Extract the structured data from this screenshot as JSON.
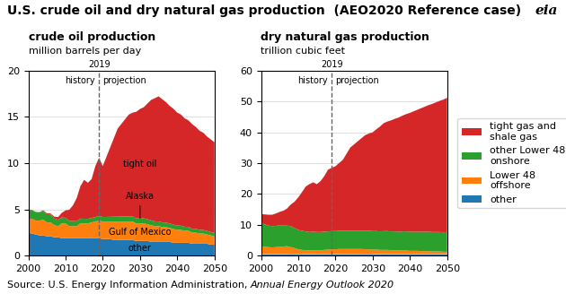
{
  "title": "U.S. crude oil and dry natural gas production  (AEO2020 Reference case)",
  "source": "Source: U.S. Energy Information Administration, ",
  "source_italic": "Annual Energy Outlook 2020",
  "logo": "eia",
  "chart_data": [
    {
      "type": "area",
      "stacked": true,
      "title": "crude oil production",
      "subtitle": "million barrels per day",
      "x": [
        2000,
        2001,
        2002,
        2003,
        2004,
        2005,
        2006,
        2007,
        2008,
        2009,
        2010,
        2011,
        2012,
        2013,
        2014,
        2015,
        2016,
        2017,
        2018,
        2019,
        2020,
        2021,
        2022,
        2023,
        2024,
        2025,
        2026,
        2027,
        2028,
        2029,
        2030,
        2031,
        2032,
        2033,
        2034,
        2035,
        2036,
        2037,
        2038,
        2039,
        2040,
        2041,
        2042,
        2043,
        2044,
        2045,
        2046,
        2047,
        2048,
        2049,
        2050
      ],
      "xlim": [
        2000,
        2050
      ],
      "xticks": [
        2000,
        2010,
        2020,
        2030,
        2040,
        2050
      ],
      "ylim": [
        0,
        20
      ],
      "yticks": [
        0,
        5,
        10,
        15,
        20
      ],
      "grid": "y",
      "vlines": [
        {
          "x": 2019,
          "label": "2019",
          "left_text": "history",
          "right_text": "projection"
        }
      ],
      "series": [
        {
          "name": "other",
          "values": [
            2.5,
            2.4,
            2.3,
            2.2,
            2.2,
            2.1,
            2.1,
            2.0,
            2.0,
            1.9,
            1.9,
            1.9,
            1.9,
            1.9,
            1.9,
            1.9,
            1.9,
            1.9,
            1.9,
            1.9,
            1.8,
            1.8,
            1.8,
            1.7,
            1.7,
            1.7,
            1.7,
            1.7,
            1.7,
            1.6,
            1.6,
            1.6,
            1.6,
            1.5,
            1.5,
            1.5,
            1.5,
            1.5,
            1.5,
            1.4,
            1.4,
            1.4,
            1.4,
            1.4,
            1.3,
            1.3,
            1.3,
            1.3,
            1.3,
            1.2,
            1.2
          ]
        },
        {
          "name": "Gulf of Mexico",
          "values": [
            1.5,
            1.6,
            1.5,
            1.6,
            1.7,
            1.5,
            1.5,
            1.3,
            1.2,
            1.6,
            1.6,
            1.3,
            1.3,
            1.3,
            1.6,
            1.6,
            1.6,
            1.7,
            1.8,
            1.9,
            1.9,
            1.9,
            1.9,
            2.0,
            2.0,
            2.0,
            2.0,
            2.0,
            2.0,
            1.9,
            1.9,
            1.9,
            1.8,
            1.8,
            1.7,
            1.7,
            1.6,
            1.6,
            1.5,
            1.5,
            1.4,
            1.4,
            1.3,
            1.3,
            1.2,
            1.2,
            1.1,
            1.1,
            1.0,
            1.0,
            0.9
          ]
        },
        {
          "name": "Alaska",
          "values": [
            0.97,
            0.95,
            0.93,
            0.92,
            0.9,
            0.89,
            0.87,
            0.72,
            0.68,
            0.64,
            0.6,
            0.57,
            0.55,
            0.53,
            0.52,
            0.5,
            0.49,
            0.48,
            0.48,
            0.49,
            0.49,
            0.5,
            0.51,
            0.52,
            0.53,
            0.54,
            0.55,
            0.55,
            0.55,
            0.55,
            0.55,
            0.54,
            0.54,
            0.53,
            0.52,
            0.51,
            0.5,
            0.49,
            0.48,
            0.47,
            0.46,
            0.45,
            0.44,
            0.43,
            0.42,
            0.41,
            0.4,
            0.39,
            0.38,
            0.37,
            0.36
          ]
        },
        {
          "name": "tight oil",
          "values": [
            0.0,
            0.0,
            0.0,
            0.0,
            0.1,
            0.1,
            0.1,
            0.2,
            0.3,
            0.5,
            0.8,
            1.2,
            1.7,
            2.5,
            3.5,
            4.2,
            3.9,
            4.2,
            5.5,
            6.3,
            5.5,
            6.5,
            7.5,
            8.5,
            9.5,
            10.0,
            10.5,
            11.0,
            11.2,
            11.5,
            11.8,
            12.0,
            12.5,
            13.0,
            13.3,
            13.5,
            13.3,
            13.0,
            12.7,
            12.5,
            12.2,
            12.0,
            11.7,
            11.5,
            11.3,
            11.0,
            10.7,
            10.5,
            10.2,
            10.0,
            9.8
          ]
        }
      ]
    },
    {
      "type": "area",
      "stacked": true,
      "title": "dry natural gas production",
      "subtitle": "trillion cubic feet",
      "x": [
        2000,
        2001,
        2002,
        2003,
        2004,
        2005,
        2006,
        2007,
        2008,
        2009,
        2010,
        2011,
        2012,
        2013,
        2014,
        2015,
        2016,
        2017,
        2018,
        2019,
        2020,
        2021,
        2022,
        2023,
        2024,
        2025,
        2026,
        2027,
        2028,
        2029,
        2030,
        2031,
        2032,
        2033,
        2034,
        2035,
        2036,
        2037,
        2038,
        2039,
        2040,
        2041,
        2042,
        2043,
        2044,
        2045,
        2046,
        2047,
        2048,
        2049,
        2050
      ],
      "xlim": [
        2000,
        2050
      ],
      "xticks": [
        2000,
        2010,
        2020,
        2030,
        2040,
        2050
      ],
      "ylim": [
        0,
        60
      ],
      "yticks": [
        0,
        10,
        20,
        30,
        40,
        50,
        60
      ],
      "grid": "y",
      "legend": "center left",
      "vlines": [
        {
          "x": 2019,
          "label": "2019",
          "left_text": "history",
          "right_text": "projection"
        }
      ],
      "series": [
        {
          "name": "other",
          "values": [
            0.5,
            0.5,
            0.5,
            0.5,
            0.5,
            0.5,
            0.5,
            0.5,
            0.5,
            0.5,
            0.5,
            0.5,
            0.5,
            0.5,
            0.5,
            0.5,
            0.5,
            0.5,
            0.5,
            0.5,
            0.5,
            0.5,
            0.5,
            0.5,
            0.5,
            0.5,
            0.5,
            0.5,
            0.5,
            0.5,
            0.5,
            0.5,
            0.5,
            0.5,
            0.5,
            0.5,
            0.5,
            0.5,
            0.5,
            0.5,
            0.5,
            0.5,
            0.5,
            0.5,
            0.5,
            0.5,
            0.5,
            0.5,
            0.5,
            0.5,
            0.5
          ]
        },
        {
          "name": "Lower 48\noffshore",
          "values": [
            2.5,
            2.4,
            2.3,
            2.2,
            2.3,
            2.4,
            2.5,
            2.6,
            2.3,
            2.0,
            1.6,
            1.4,
            1.3,
            1.2,
            1.3,
            1.3,
            1.3,
            1.4,
            1.5,
            1.6,
            1.6,
            1.7,
            1.7,
            1.7,
            1.7,
            1.7,
            1.7,
            1.7,
            1.6,
            1.6,
            1.5,
            1.5,
            1.4,
            1.4,
            1.4,
            1.3,
            1.3,
            1.2,
            1.2,
            1.2,
            1.1,
            1.1,
            1.1,
            1.0,
            1.0,
            1.0,
            0.9,
            0.9,
            0.9,
            0.8,
            0.8
          ]
        },
        {
          "name": "other Lower 48\nonshore",
          "values": [
            7.5,
            7.3,
            7.0,
            6.9,
            6.9,
            7.0,
            6.8,
            6.7,
            6.8,
            6.5,
            6.3,
            6.2,
            6.1,
            6.0,
            6.0,
            5.9,
            5.9,
            5.9,
            5.9,
            5.9,
            5.9,
            5.9,
            5.9,
            5.9,
            5.9,
            5.9,
            5.9,
            5.9,
            6.0,
            6.0,
            6.0,
            6.0,
            6.0,
            6.1,
            6.1,
            6.1,
            6.1,
            6.1,
            6.2,
            6.2,
            6.2,
            6.2,
            6.2,
            6.3,
            6.3,
            6.3,
            6.3,
            6.3,
            6.3,
            6.3,
            6.4
          ]
        },
        {
          "name": "tight gas and\nshale gas",
          "values": [
            3.0,
            3.2,
            3.5,
            3.7,
            4.0,
            4.3,
            4.8,
            5.5,
            7.0,
            8.5,
            10.5,
            12.5,
            14.5,
            15.5,
            16.0,
            15.5,
            16.5,
            18.0,
            20.0,
            20.5,
            21.0,
            22.0,
            23.0,
            25.0,
            27.0,
            28.0,
            29.0,
            30.0,
            31.0,
            31.5,
            32.0,
            33.0,
            34.0,
            35.0,
            35.5,
            36.0,
            36.5,
            37.0,
            37.5,
            38.0,
            38.5,
            39.0,
            39.5,
            40.0,
            40.5,
            41.0,
            41.5,
            42.0,
            42.5,
            43.0,
            43.5
          ]
        }
      ]
    }
  ]
}
